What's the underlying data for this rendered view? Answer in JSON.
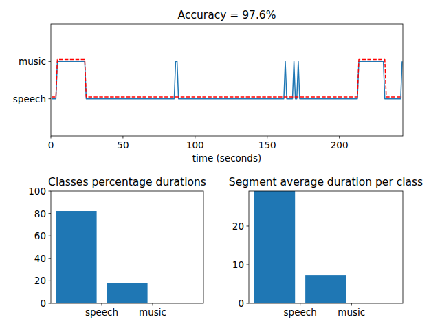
{
  "chart_data": [
    {
      "type": "line",
      "title": "Accuracy = 97.6%",
      "x_label": "time (seconds)",
      "xlim": [
        0,
        244
      ],
      "xticks": [
        0,
        50,
        100,
        150,
        200
      ],
      "ylim": [
        -1,
        2
      ],
      "yticks": [
        {
          "value": 0,
          "label": "speech"
        },
        {
          "value": 1,
          "label": "music"
        }
      ],
      "series": [
        {
          "color": "#1f77b4",
          "line_style": "solid",
          "x": [
            0.5,
            3.5,
            4.5,
            23.5,
            24.5,
            85.5,
            86.5,
            87.5,
            88.5,
            161.5,
            162.5,
            163.5,
            167.5,
            168.5,
            169.5,
            170.5,
            171.5,
            172.5,
            212.5,
            213.5,
            230.5,
            231.5,
            242.5,
            243.5
          ],
          "values": [
            0,
            0,
            1,
            1,
            0,
            0,
            1,
            1,
            0,
            0,
            1,
            0,
            0,
            1,
            0,
            0,
            1,
            0,
            0,
            1,
            1,
            0,
            0,
            1
          ]
        },
        {
          "color": "#ff0000",
          "line_style": "dashed",
          "x": [
            0.5,
            3.5,
            4.5,
            23.5,
            24.5,
            212.5,
            213.5,
            231.5,
            232.5,
            243.5
          ],
          "values": [
            0.05,
            0.05,
            1.05,
            1.05,
            0.05,
            0.05,
            1.05,
            1.05,
            0.05,
            0.05
          ]
        }
      ]
    },
    {
      "type": "bar",
      "title": "Classes percentage durations",
      "color": "#1f77b4",
      "x": [
        0.5,
        1.5
      ],
      "values": [
        82.2,
        17.8
      ],
      "xlim": [
        0,
        3
      ],
      "xticks": [
        {
          "value": 1,
          "label": "speech"
        },
        {
          "value": 2,
          "label": "music"
        }
      ],
      "ylim": [
        0,
        100
      ],
      "yticks": [
        0,
        20,
        40,
        60,
        80,
        100
      ]
    },
    {
      "type": "bar",
      "title": "Segment average duration per class",
      "color": "#1f77b4",
      "x": [
        0.5,
        1.5
      ],
      "values": [
        29.1,
        7.3
      ],
      "xlim": [
        0,
        3
      ],
      "xticks": [
        {
          "value": 1,
          "label": "speech"
        },
        {
          "value": 2,
          "label": "music"
        }
      ],
      "ylim": [
        0,
        29.1
      ],
      "yticks": [
        0,
        10,
        20
      ]
    }
  ]
}
